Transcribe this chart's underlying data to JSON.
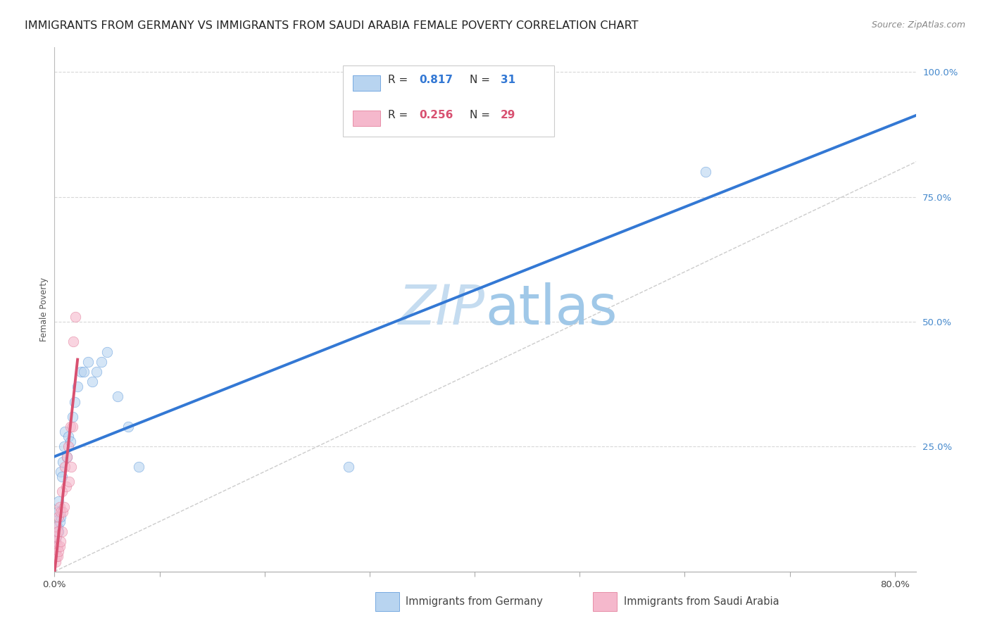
{
  "title": "IMMIGRANTS FROM GERMANY VS IMMIGRANTS FROM SAUDI ARABIA FEMALE POVERTY CORRELATION CHART",
  "source": "Source: ZipAtlas.com",
  "ylabel": "Female Poverty",
  "xlim": [
    0.0,
    0.82
  ],
  "ylim": [
    0.0,
    1.05
  ],
  "germany_R": 0.817,
  "germany_N": 31,
  "saudi_R": 0.256,
  "saudi_N": 29,
  "germany_dot_color": "#b8d4f0",
  "germany_edge_color": "#5090d8",
  "germany_line_color": "#3378d4",
  "saudi_dot_color": "#f5b8cc",
  "saudi_edge_color": "#e07090",
  "saudi_line_color": "#d85070",
  "diagonal_color": "#cccccc",
  "grid_color": "#d8d8d8",
  "ytick_color": "#4488cc",
  "title_fontsize": 11.5,
  "source_fontsize": 9,
  "ylabel_fontsize": 8.5,
  "tick_fontsize": 9.5,
  "legend_fontsize": 11,
  "scatter_size": 110,
  "scatter_alpha": 0.6,
  "line_width": 2.8,
  "germany_x": [
    0.001,
    0.002,
    0.003,
    0.003,
    0.004,
    0.004,
    0.005,
    0.006,
    0.006,
    0.007,
    0.008,
    0.009,
    0.01,
    0.012,
    0.013,
    0.015,
    0.017,
    0.019,
    0.022,
    0.025,
    0.028,
    0.032,
    0.036,
    0.04,
    0.045,
    0.05,
    0.06,
    0.07,
    0.08,
    0.28,
    0.62
  ],
  "germany_y": [
    0.06,
    0.07,
    0.09,
    0.12,
    0.08,
    0.14,
    0.1,
    0.2,
    0.11,
    0.19,
    0.22,
    0.25,
    0.28,
    0.23,
    0.27,
    0.26,
    0.31,
    0.34,
    0.37,
    0.4,
    0.4,
    0.42,
    0.38,
    0.4,
    0.42,
    0.44,
    0.35,
    0.29,
    0.21,
    0.21,
    0.8
  ],
  "saudi_x": [
    0.001,
    0.001,
    0.001,
    0.002,
    0.002,
    0.002,
    0.003,
    0.003,
    0.003,
    0.004,
    0.004,
    0.005,
    0.005,
    0.006,
    0.006,
    0.007,
    0.007,
    0.008,
    0.009,
    0.01,
    0.011,
    0.012,
    0.013,
    0.014,
    0.015,
    0.016,
    0.017,
    0.018,
    0.02
  ],
  "saudi_y": [
    0.02,
    0.04,
    0.06,
    0.03,
    0.07,
    0.09,
    0.03,
    0.05,
    0.08,
    0.04,
    0.11,
    0.05,
    0.13,
    0.06,
    0.12,
    0.08,
    0.16,
    0.12,
    0.13,
    0.21,
    0.17,
    0.23,
    0.25,
    0.18,
    0.29,
    0.21,
    0.29,
    0.46,
    0.51
  ],
  "legend_R_color": "#4488cc",
  "legend_N_color": "#4488cc",
  "legend_saudi_R_color": "#d85070",
  "legend_saudi_N_color": "#d85070"
}
